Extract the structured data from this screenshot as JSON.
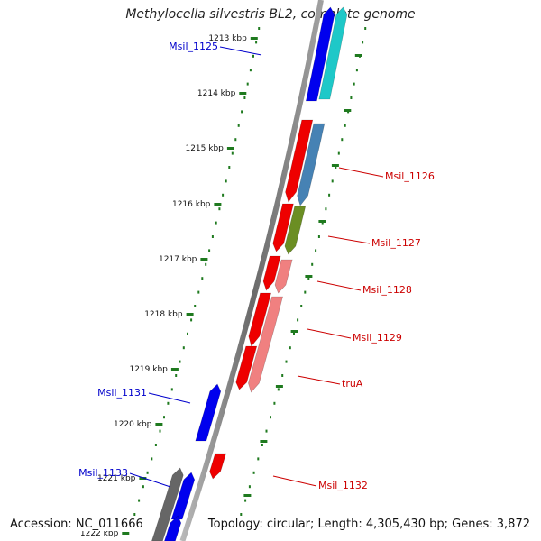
{
  "title": "Methylocella silvestris BL2, complete genome",
  "footer": {
    "accession": "Accession: NC_011666",
    "topology": "Topology: circular; Length: 4,305,430 bp; Genes: 3,872"
  },
  "colors": {
    "background": "#ffffff",
    "backbone": "#8a8a8a",
    "tick": "#1f7a1f",
    "gene_label_blue": "#0000cc",
    "gene_label_red": "#cc0000"
  },
  "kbp_ticks": [
    "1213 kbp",
    "1214 kbp",
    "1215 kbp",
    "1216 kbp",
    "1217 kbp",
    "1218 kbp",
    "1219 kbp",
    "1220 kbp",
    "1221 kbp",
    "1222 kbp"
  ],
  "gene_labels": [
    {
      "name": "Msil_1125",
      "color": "#0000cc"
    },
    {
      "name": "Msil_1126",
      "color": "#cc0000"
    },
    {
      "name": "Msil_1127",
      "color": "#cc0000"
    },
    {
      "name": "Msil_1128",
      "color": "#cc0000"
    },
    {
      "name": "Msil_1129",
      "color": "#cc0000"
    },
    {
      "name": "truA",
      "color": "#cc0000"
    },
    {
      "name": "Msil_1131",
      "color": "#0000cc"
    },
    {
      "name": "Msil_1132",
      "color": "#cc0000"
    },
    {
      "name": "Msil_1133",
      "color": "#0000cc"
    }
  ],
  "genes": [
    {
      "lane": "R2",
      "strand": "+",
      "color": "#1ec8c8"
    },
    {
      "lane": "R1",
      "strand": "+",
      "color": "#0000ee"
    },
    {
      "lane": "R1",
      "strand": "-",
      "color": "#ee0000"
    },
    {
      "lane": "R2",
      "strand": "-",
      "color": "#4682b4"
    },
    {
      "lane": "R1",
      "strand": "-",
      "color": "#ee0000"
    },
    {
      "lane": "R2",
      "strand": "-",
      "color": "#6b8e23"
    },
    {
      "lane": "R1",
      "strand": "-",
      "color": "#ee0000"
    },
    {
      "lane": "R2",
      "strand": "-",
      "color": "#f08080"
    },
    {
      "lane": "R1",
      "strand": "-",
      "color": "#ee0000"
    },
    {
      "lane": "R2",
      "strand": "-",
      "color": "#f08080"
    },
    {
      "lane": "R1",
      "strand": "-",
      "color": "#ee0000"
    },
    {
      "lane": "L1",
      "strand": "+",
      "color": "#0000ee"
    },
    {
      "lane": "R1",
      "strand": "-",
      "color": "#ee0000"
    },
    {
      "lane": "L2",
      "strand": "+",
      "color": "#666666"
    },
    {
      "lane": "L1",
      "strand": "+",
      "color": "#0000ee"
    },
    {
      "lane": "L1",
      "strand": "+",
      "color": "#0000ee"
    }
  ]
}
